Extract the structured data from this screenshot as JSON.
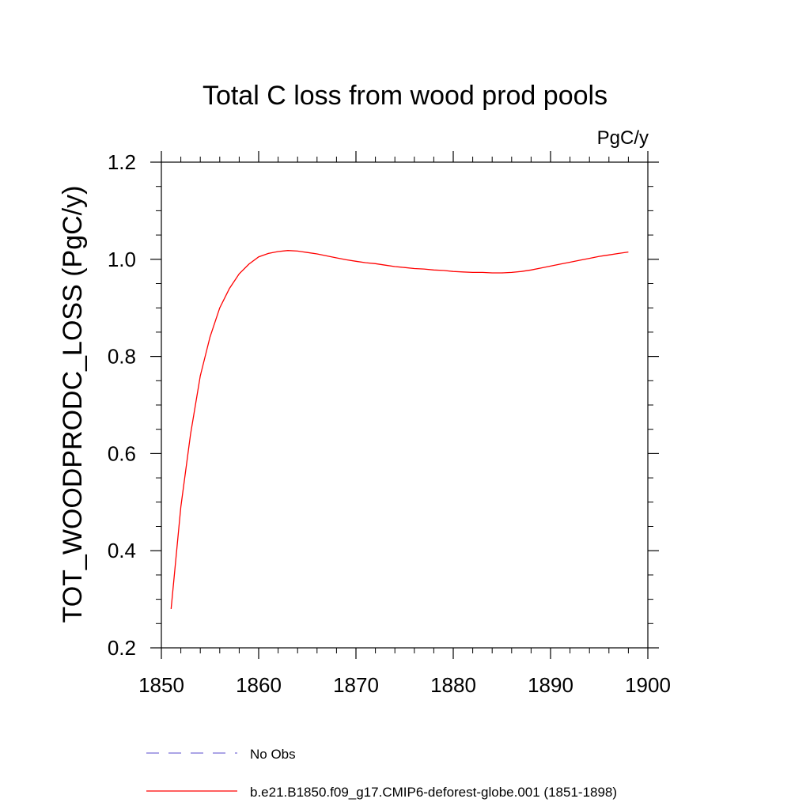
{
  "chart_data": {
    "type": "line",
    "title": "Total C loss from wood prod pools",
    "units": "PgC/y",
    "xlabel": "",
    "ylabel": "TOT_WOODPRODC_LOSS  (PgC/y)",
    "xlim": [
      1850,
      1900
    ],
    "ylim": [
      0.2,
      1.2
    ],
    "xticks": [
      1850,
      1860,
      1870,
      1880,
      1890,
      1900
    ],
    "yticks": [
      0.2,
      0.4,
      0.6,
      0.8,
      1.0,
      1.2
    ],
    "ytick_labels": [
      "0.2",
      "0.4",
      "0.6",
      "0.8",
      "1.0",
      "1.2"
    ],
    "grid": false,
    "legend_placement": "bottom",
    "series": [
      {
        "name": "No Obs",
        "color": "#7b6fd6",
        "style": "dashed",
        "x": [],
        "y": []
      },
      {
        "name": "b.e21.B1850.f09_g17.CMIP6-deforest-globe.001 (1851-1898)",
        "color": "#ff0000",
        "style": "solid",
        "x": [
          1851,
          1852,
          1853,
          1854,
          1855,
          1856,
          1857,
          1858,
          1859,
          1860,
          1861,
          1862,
          1863,
          1864,
          1865,
          1866,
          1867,
          1868,
          1869,
          1870,
          1871,
          1872,
          1873,
          1874,
          1875,
          1876,
          1877,
          1878,
          1879,
          1880,
          1881,
          1882,
          1883,
          1884,
          1885,
          1886,
          1887,
          1888,
          1889,
          1890,
          1891,
          1892,
          1893,
          1894,
          1895,
          1896,
          1897,
          1898
        ],
        "y": [
          0.28,
          0.49,
          0.64,
          0.76,
          0.84,
          0.9,
          0.94,
          0.97,
          0.99,
          1.005,
          1.012,
          1.016,
          1.018,
          1.017,
          1.014,
          1.011,
          1.007,
          1.003,
          0.999,
          0.996,
          0.993,
          0.991,
          0.988,
          0.985,
          0.983,
          0.981,
          0.98,
          0.978,
          0.977,
          0.975,
          0.974,
          0.973,
          0.973,
          0.972,
          0.972,
          0.973,
          0.975,
          0.978,
          0.982,
          0.986,
          0.99,
          0.994,
          0.998,
          1.002,
          1.006,
          1.009,
          1.012,
          1.015
        ]
      }
    ]
  }
}
